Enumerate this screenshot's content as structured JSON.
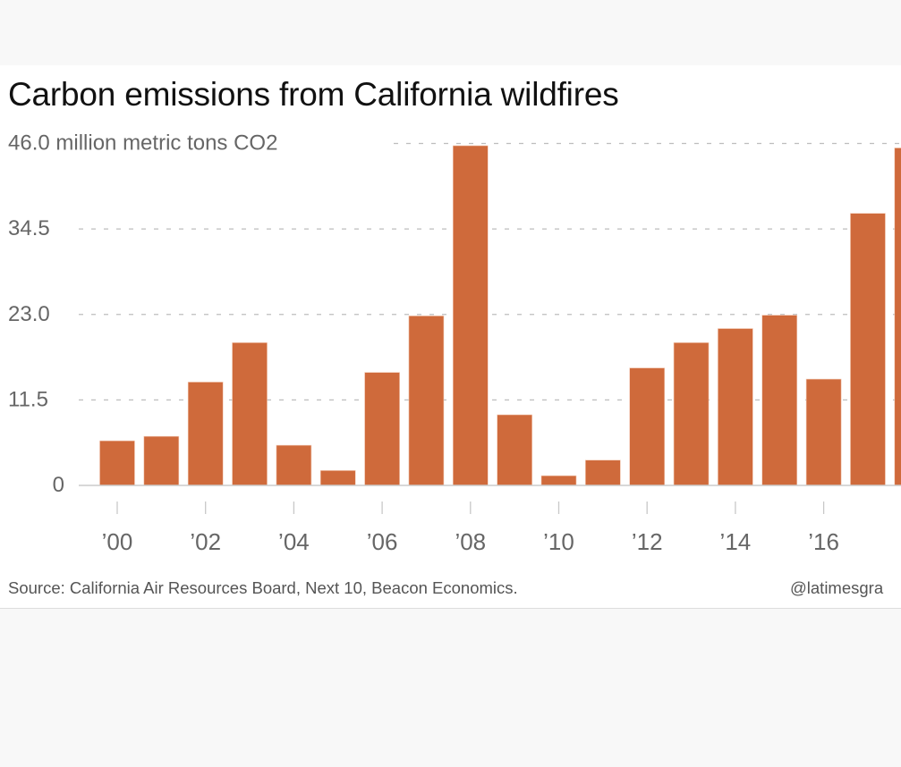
{
  "chart_data": {
    "type": "bar",
    "title": "Carbon emissions from California wildfires",
    "ylabel": "million metric tons CO2",
    "xlabel": "",
    "ylim": [
      0,
      46.0
    ],
    "yticks": [
      0,
      11.5,
      23.0,
      34.5,
      46.0
    ],
    "ytick_labels": [
      "0",
      "11.5",
      "23.0",
      "34.5",
      "46.0 million metric tons CO2"
    ],
    "grid": true,
    "categories": [
      "2000",
      "2001",
      "2002",
      "2003",
      "2004",
      "2005",
      "2006",
      "2007",
      "2008",
      "2009",
      "2010",
      "2011",
      "2012",
      "2013",
      "2014",
      "2015",
      "2016",
      "2017",
      "2018"
    ],
    "values": [
      6.0,
      6.6,
      13.9,
      19.2,
      5.4,
      2.0,
      15.2,
      22.8,
      45.7,
      9.5,
      1.3,
      3.4,
      15.8,
      19.2,
      21.1,
      22.9,
      14.3,
      36.6,
      45.4
    ],
    "xtick_labels": [
      "’00",
      "’02",
      "’04",
      "’06",
      "’08",
      "’10",
      "’12",
      "’14",
      "’16",
      "’"
    ],
    "xtick_years": [
      "2000",
      "2002",
      "2004",
      "2006",
      "2008",
      "2010",
      "2012",
      "2014",
      "2016",
      "2018"
    ],
    "bar_color": "#cf6a3b",
    "source": "Source: California Air Resources Board, Next 10, Beacon Economics.",
    "credit": "@latimesgra"
  },
  "colors": {
    "bar": "#cf6a3b",
    "grid": "#bdbdbd",
    "axis_text": "#666666",
    "title": "#111111"
  }
}
